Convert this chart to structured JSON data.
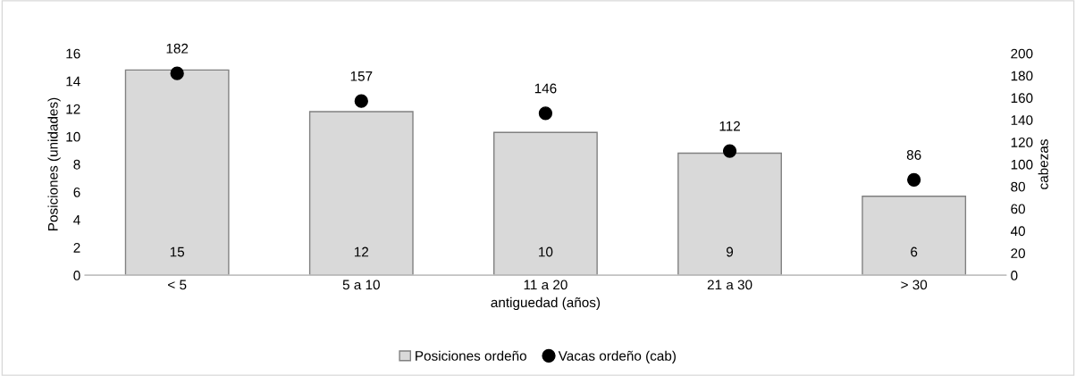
{
  "chart_data": {
    "type": "bar",
    "xlabel": "antiguedad (años)",
    "ylabel": "Posiciones (unidades)",
    "y2label": "cabezas",
    "categories": [
      "< 5",
      "5 a 10",
      "11 a 20",
      "21 a 30",
      "> 30"
    ],
    "series": [
      {
        "name": "Posiciones ordeño",
        "color": "#d9d9d9",
        "values": [
          14.8,
          11.8,
          10.3,
          8.8,
          5.7
        ],
        "value_labels": [
          "15",
          "12",
          "10",
          "9",
          "6"
        ]
      },
      {
        "name": "Vacas ordeño (cab)",
        "type": "scatter",
        "axis": "y2",
        "color": "#000000",
        "marker": "circle",
        "values": [
          182,
          157,
          146,
          112,
          86
        ],
        "value_labels": [
          "182",
          "157",
          "146",
          "112",
          "86"
        ]
      }
    ],
    "ylim": [
      0,
      16
    ],
    "yticks": [
      0,
      2,
      4,
      6,
      8,
      10,
      12,
      14,
      16
    ],
    "y2lim": [
      0,
      200
    ],
    "y2ticks": [
      0,
      20,
      40,
      60,
      80,
      100,
      120,
      140,
      160,
      180,
      200
    ],
    "grid": false,
    "legend": "bottom"
  }
}
